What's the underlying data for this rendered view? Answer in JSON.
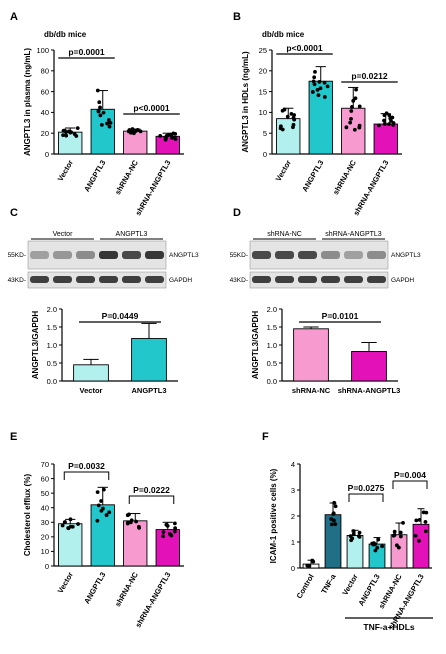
{
  "colors": {
    "cyan_light": "#b2f0ee",
    "cyan": "#22c7cc",
    "pink": "#f79ad0",
    "magenta": "#e312b8",
    "teal_dark": "#1f6f87",
    "white": "#ffffff",
    "band": "#222222"
  },
  "chart_data": [
    {
      "panel": "A",
      "type": "bar",
      "title": "db/db mice",
      "ylabel": "ANGPTL3 in plasma (ng/mL)",
      "ylim": [
        0,
        100
      ],
      "yticks": [
        "0",
        "20",
        "40",
        "60",
        "80",
        "100"
      ],
      "categories": [
        "Vector",
        "ANGPTL3",
        "shRNA-NC",
        "shRNA-ANGPTL3"
      ],
      "values": [
        21,
        43,
        22,
        17
      ],
      "errors": [
        4,
        18,
        2,
        3
      ],
      "annotations": [
        "p=0.0001",
        "p<0.0001"
      ]
    },
    {
      "panel": "B",
      "type": "bar",
      "title": "db/db mice",
      "ylabel": "ANGPTL3 in HDLs (ng/mL)",
      "ylim": [
        0,
        25
      ],
      "yticks": [
        "0",
        "5",
        "10",
        "15",
        "20",
        "25"
      ],
      "categories": [
        "Vector",
        "ANGPTL3",
        "shRNA-NC",
        "shRNA-ANGPTL3"
      ],
      "values": [
        8.5,
        17.5,
        11,
        7.2
      ],
      "errors": [
        2.5,
        3.5,
        5,
        2.5
      ],
      "annotations": [
        "p<0.0001",
        "p=0.0212"
      ]
    },
    {
      "panel": "C",
      "type": "bar",
      "ylabel": "ANGPTL3/GAPDH",
      "ylim": [
        0,
        2.0
      ],
      "yticks": [
        "0.0",
        "0.5",
        "1.0",
        "1.5",
        "2.0"
      ],
      "categories": [
        "Vector",
        "ANGPTL3"
      ],
      "values": [
        0.45,
        1.18
      ],
      "errors": [
        0.15,
        0.42
      ],
      "annotations": [
        "P=0.0449"
      ]
    },
    {
      "panel": "D",
      "type": "bar",
      "ylabel": "ANGPTL3/GAPDH",
      "ylim": [
        0,
        2.0
      ],
      "yticks": [
        "0.0",
        "0.5",
        "1.0",
        "1.5",
        "2.0"
      ],
      "categories": [
        "shRNA-NC",
        "shRNA-ANGPTL3"
      ],
      "values": [
        1.45,
        0.82
      ],
      "errors": [
        0.05,
        0.25
      ],
      "annotations": [
        "P=0.0101"
      ]
    },
    {
      "panel": "E",
      "type": "bar",
      "ylabel": "Cholesterol efflux (%)",
      "ylim": [
        0,
        70
      ],
      "yticks": [
        "0",
        "10",
        "20",
        "30",
        "40",
        "50",
        "60",
        "70"
      ],
      "categories": [
        "Vector",
        "ANGPTL3",
        "shRNA-NC",
        "shRNA-ANGPTL3"
      ],
      "values": [
        29,
        42,
        31,
        25
      ],
      "errors": [
        3,
        12,
        5,
        5
      ],
      "annotations": [
        "P=0.0032",
        "P=0.0222"
      ]
    },
    {
      "panel": "F",
      "type": "bar",
      "ylabel": "ICAM-1 positive cells (%)",
      "ylim": [
        0,
        4
      ],
      "yticks": [
        "0",
        "1",
        "2",
        "3",
        "4"
      ],
      "categories": [
        "Control",
        "TNF-a",
        "Vector",
        "ANGPTL3",
        "shRNA-NC",
        "shRNA-ANGPTL3"
      ],
      "values": [
        0.15,
        2.05,
        1.25,
        0.92,
        1.28,
        1.68
      ],
      "errors": [
        0.15,
        0.45,
        0.2,
        0.25,
        0.45,
        0.6
      ],
      "annotations": [
        "P=0.0275",
        "P=0.004"
      ],
      "group_label": "TNF-a+HDLs"
    }
  ],
  "blots": {
    "C": {
      "lane_groups": [
        "Vector",
        "ANGPTL3"
      ],
      "markers": [
        "55KD-",
        "43KD-"
      ],
      "proteins": [
        "ANGPTL3",
        "GAPDH"
      ]
    },
    "D": {
      "lane_groups": [
        "shRNA-NC",
        "shRNA-ANGPTL3"
      ],
      "markers": [
        "55KD-",
        "43KD-"
      ],
      "proteins": [
        "ANGPTL3",
        "GAPDH"
      ]
    }
  }
}
